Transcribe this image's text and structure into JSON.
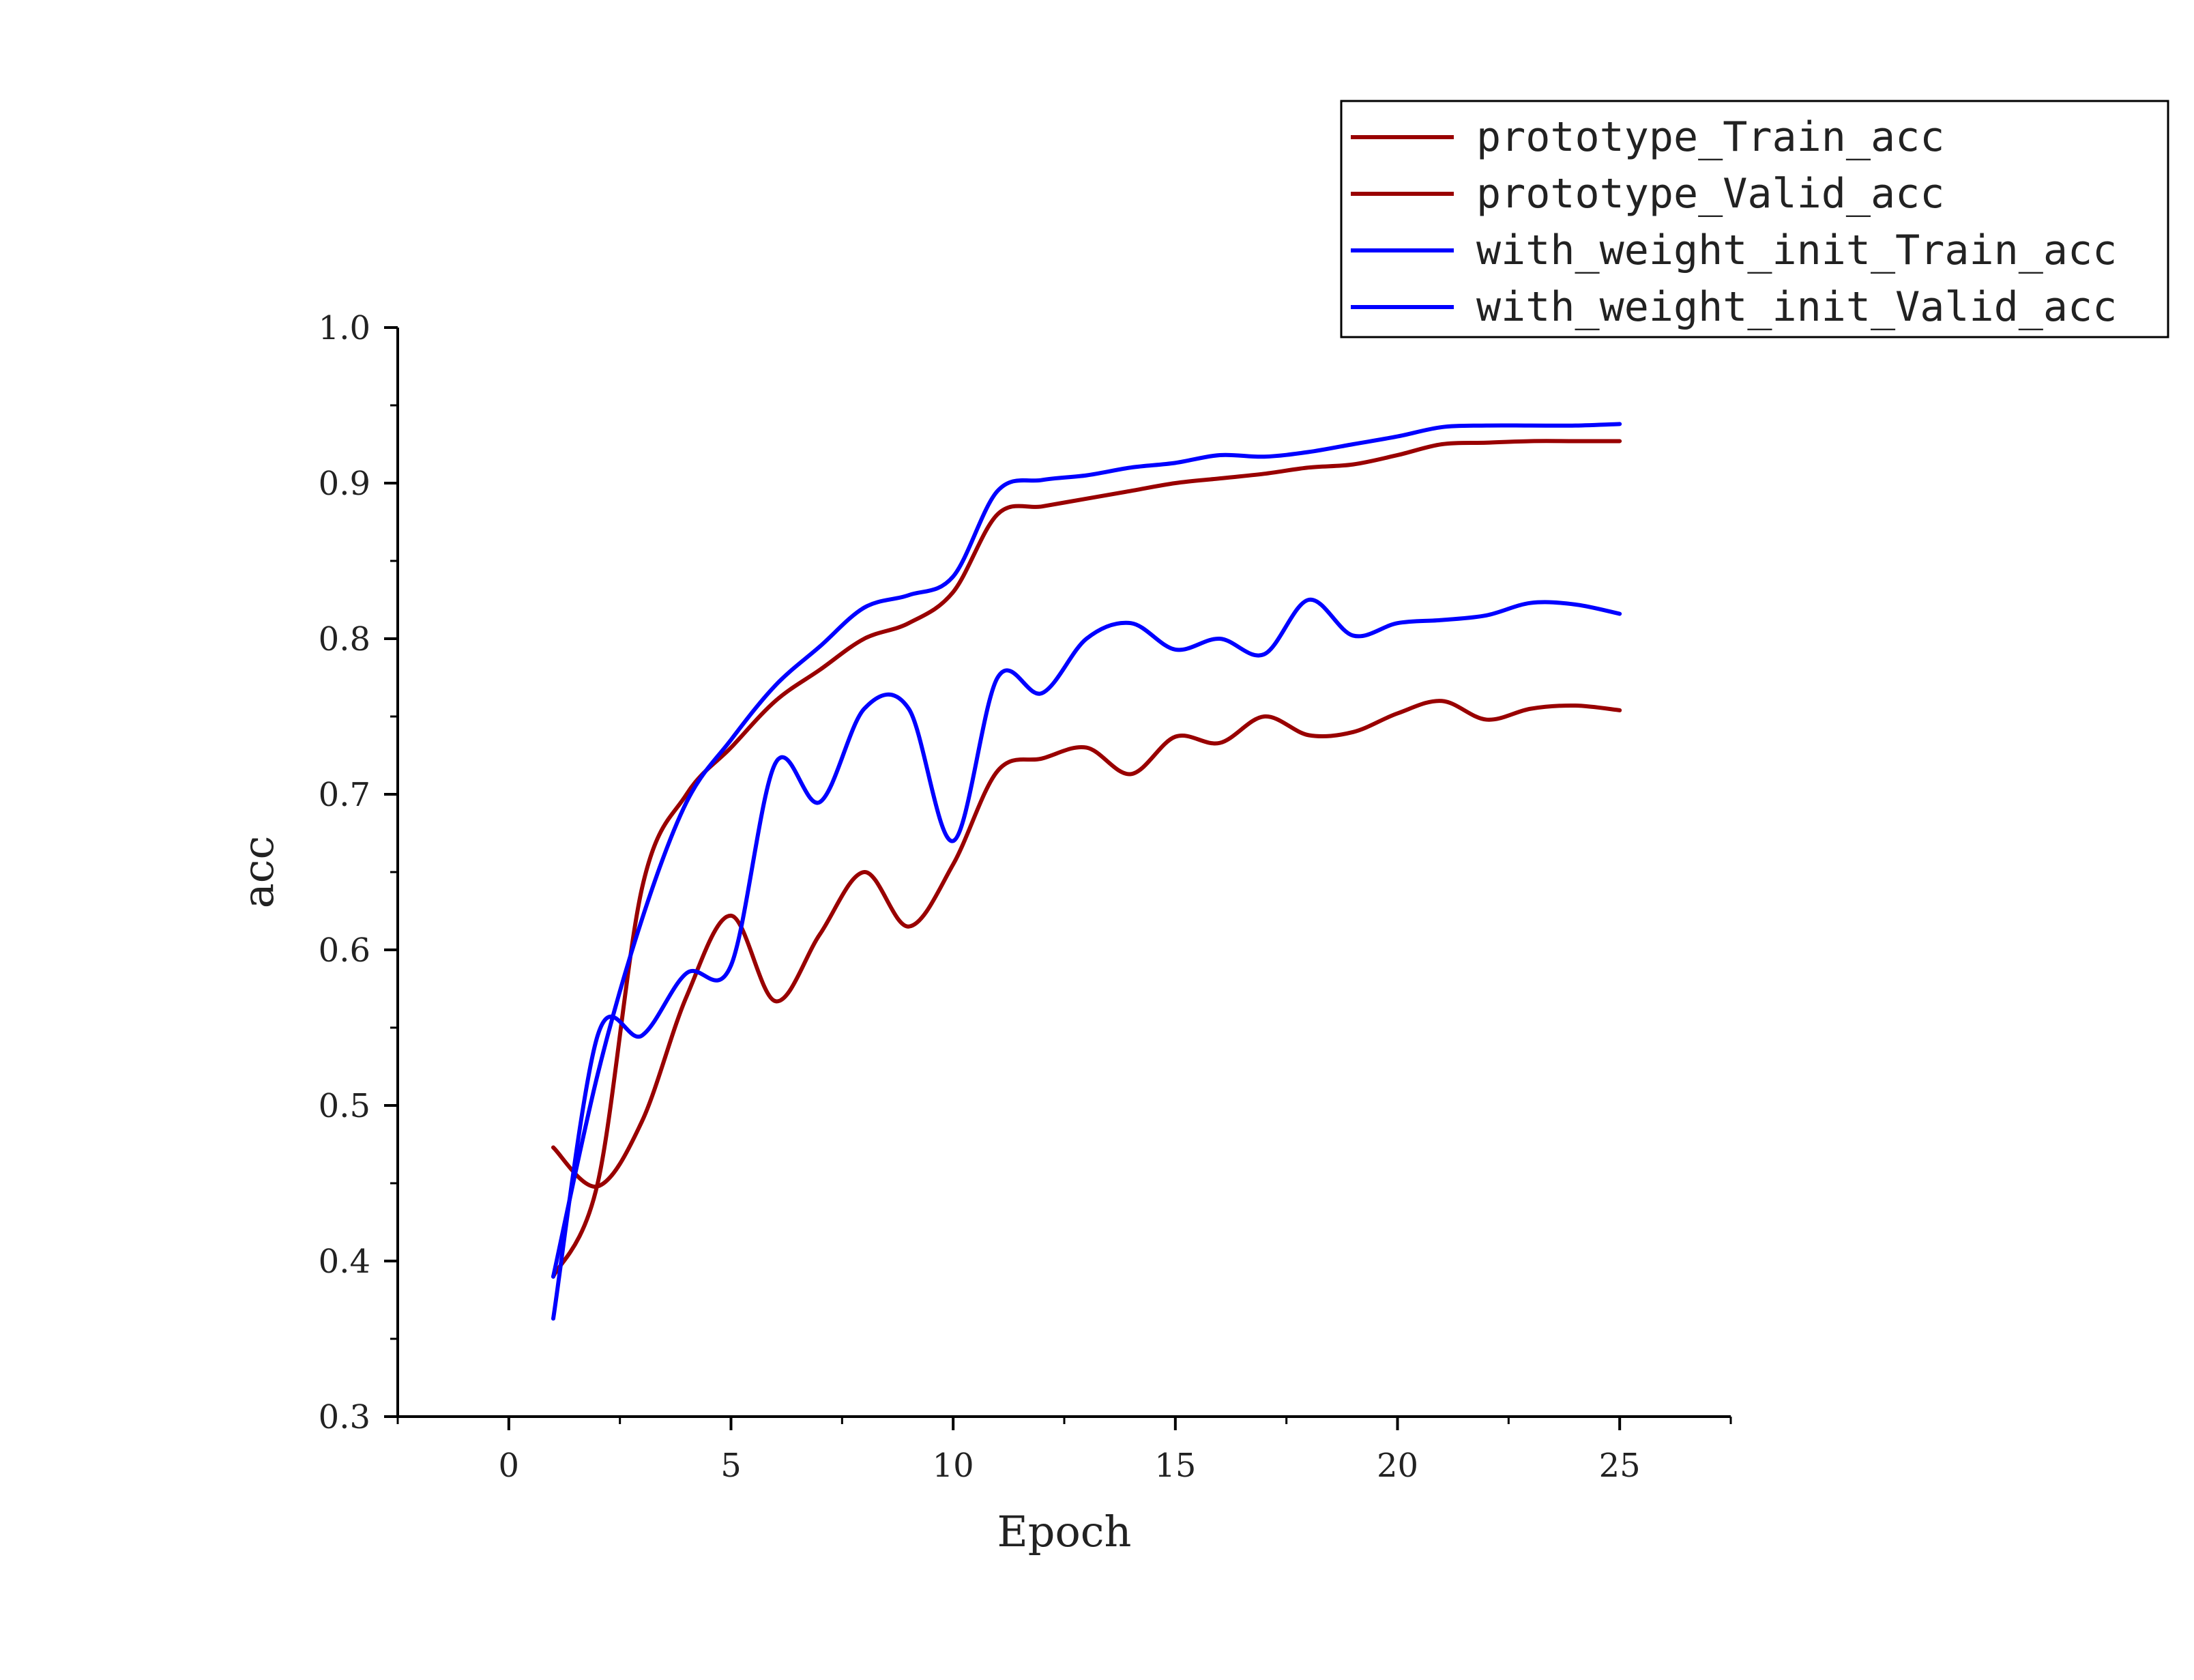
{
  "chart_data": {
    "type": "line",
    "title": "",
    "xlabel": "Epoch",
    "ylabel": "acc",
    "xlim": [
      -2.5,
      27.5
    ],
    "ylim": [
      0.3,
      1.0
    ],
    "x_ticks": [
      0,
      5,
      10,
      15,
      20,
      25
    ],
    "x_tick_labels": [
      "0",
      "5",
      "10",
      "15",
      "20",
      "25"
    ],
    "y_ticks": [
      0.3,
      0.4,
      0.5,
      0.6,
      0.7,
      0.8,
      0.9,
      1.0
    ],
    "y_tick_labels": [
      "0.3",
      "0.4",
      "0.5",
      "0.6",
      "0.7",
      "0.8",
      "0.9",
      "1.0"
    ],
    "grid": false,
    "legend_position": "top-right",
    "x": [
      1,
      2,
      3,
      4,
      5,
      6,
      7,
      8,
      9,
      10,
      11,
      12,
      13,
      14,
      15,
      16,
      17,
      18,
      19,
      20,
      21,
      22,
      23,
      24,
      25
    ],
    "series": [
      {
        "name": "prototype_Train_acc",
        "color": "#990000",
        "values": [
          0.39,
          0.45,
          0.64,
          0.7,
          0.73,
          0.76,
          0.78,
          0.8,
          0.81,
          0.83,
          0.88,
          0.885,
          0.89,
          0.895,
          0.9,
          0.903,
          0.906,
          0.91,
          0.912,
          0.918,
          0.925,
          0.926,
          0.927,
          0.927,
          0.927
        ]
      },
      {
        "name": "prototype_Valid_acc",
        "color": "#990000",
        "values": [
          0.473,
          0.448,
          0.49,
          0.57,
          0.622,
          0.567,
          0.61,
          0.65,
          0.615,
          0.655,
          0.715,
          0.723,
          0.73,
          0.713,
          0.737,
          0.733,
          0.75,
          0.738,
          0.74,
          0.752,
          0.76,
          0.748,
          0.755,
          0.757,
          0.754
        ]
      },
      {
        "name": "with_weight_init_Train_acc",
        "color": "#0000ff",
        "values": [
          0.39,
          0.52,
          0.62,
          0.695,
          0.735,
          0.77,
          0.795,
          0.82,
          0.828,
          0.84,
          0.895,
          0.902,
          0.905,
          0.91,
          0.913,
          0.918,
          0.917,
          0.92,
          0.925,
          0.93,
          0.936,
          0.937,
          0.937,
          0.937,
          0.938
        ]
      },
      {
        "name": "with_weight_init_Valid_acc",
        "color": "#0000ff",
        "values": [
          0.363,
          0.545,
          0.545,
          0.585,
          0.59,
          0.72,
          0.695,
          0.755,
          0.755,
          0.67,
          0.775,
          0.765,
          0.8,
          0.81,
          0.793,
          0.8,
          0.79,
          0.825,
          0.802,
          0.81,
          0.812,
          0.815,
          0.823,
          0.822,
          0.816
        ]
      }
    ]
  }
}
